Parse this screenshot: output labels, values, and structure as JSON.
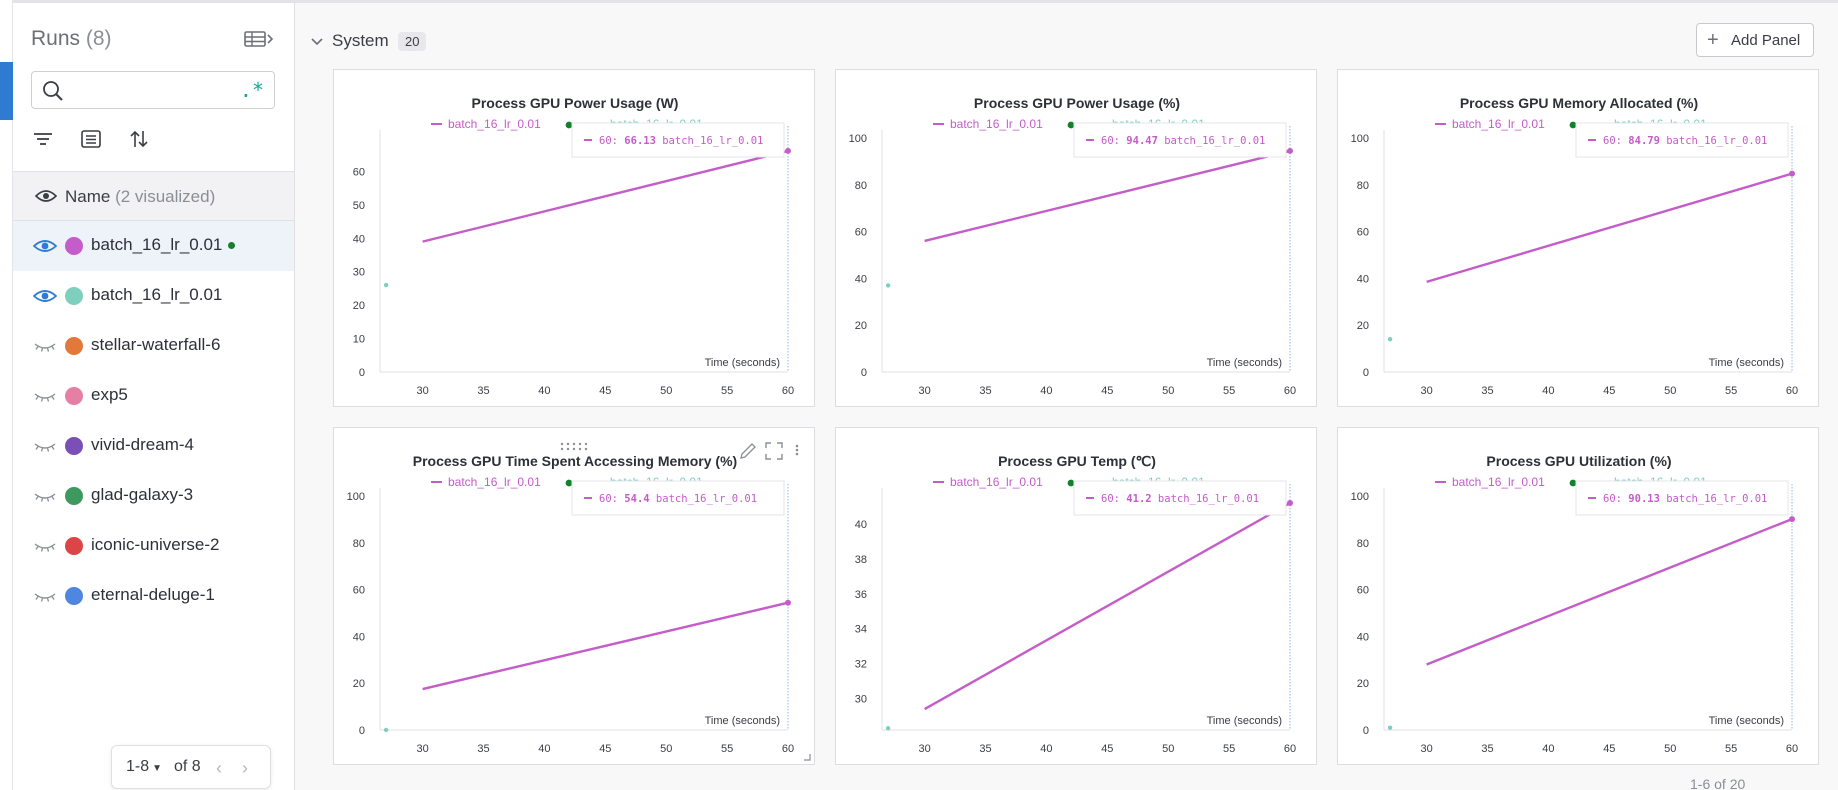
{
  "sidebar": {
    "title": "Runs",
    "count": "(8)",
    "search": {
      "value": "",
      "placeholder": "",
      "regex_label": ".*"
    },
    "name_header": {
      "label": "Name",
      "sub": "(2 visualized)"
    },
    "runs": [
      {
        "name": "batch_16_lr_0.01",
        "color": "#c45cc9",
        "visible": true,
        "selected": true,
        "live": true
      },
      {
        "name": "batch_16_lr_0.01",
        "color": "#7fcfbf",
        "visible": true,
        "selected": false,
        "live": false
      },
      {
        "name": "stellar-waterfall-6",
        "color": "#e2793a",
        "visible": false,
        "selected": false,
        "live": false
      },
      {
        "name": "exp5",
        "color": "#e57fa3",
        "visible": false,
        "selected": false,
        "live": false
      },
      {
        "name": "vivid-dream-4",
        "color": "#7a4fb6",
        "visible": false,
        "selected": false,
        "live": false
      },
      {
        "name": "glad-galaxy-3",
        "color": "#3c9a5f",
        "visible": false,
        "selected": false,
        "live": false
      },
      {
        "name": "iconic-universe-2",
        "color": "#dc4545",
        "visible": false,
        "selected": false,
        "live": false
      },
      {
        "name": "eternal-deluge-1",
        "color": "#4f86e0",
        "visible": false,
        "selected": false,
        "live": false
      }
    ],
    "pager": {
      "range": "1-8",
      "of": "of 8"
    }
  },
  "section": {
    "title": "System",
    "count": "20",
    "add_panel_label": "Add Panel"
  },
  "colors": {
    "series_a": "#c45cc9",
    "series_b": "#7fcfbf",
    "accent": "#2e7bd1",
    "live": "#13802e"
  },
  "bottom_pager": "1-6 of 20",
  "chart_data": [
    {
      "type": "line",
      "title": "Process GPU Power Usage (W)",
      "xlabel": "Time (seconds)",
      "xlim": [
        26.5,
        60
      ],
      "xticks": [
        30,
        35,
        40,
        45,
        50,
        55,
        60
      ],
      "ylim": [
        0,
        70
      ],
      "yticks": [
        0,
        10,
        20,
        30,
        40,
        50,
        60
      ],
      "series": [
        {
          "name": "batch_16_lr_0.01",
          "color": "#c45cc9",
          "x": [
            30,
            60
          ],
          "y": [
            39,
            66.13
          ]
        },
        {
          "name": "batch_16_lr_0.01",
          "color": "#7fcfbf",
          "x": [
            27
          ],
          "y": [
            26
          ]
        }
      ],
      "tooltip": {
        "x": "60:",
        "value": "66.13",
        "run": "batch_16_lr_0.01"
      }
    },
    {
      "type": "line",
      "title": "Process GPU Power Usage (%)",
      "xlabel": "Time (seconds)",
      "xlim": [
        26.5,
        60
      ],
      "xticks": [
        30,
        35,
        40,
        45,
        50,
        55,
        60
      ],
      "ylim": [
        0,
        100
      ],
      "yticks": [
        0,
        20,
        40,
        60,
        80,
        100
      ],
      "series": [
        {
          "name": "batch_16_lr_0.01",
          "color": "#c45cc9",
          "x": [
            30,
            60
          ],
          "y": [
            56,
            94.47
          ]
        },
        {
          "name": "batch_16_lr_0.01",
          "color": "#7fcfbf",
          "x": [
            27
          ],
          "y": [
            37
          ]
        }
      ],
      "tooltip": {
        "x": "60:",
        "value": "94.47",
        "run": "batch_16_lr_0.01"
      }
    },
    {
      "type": "line",
      "title": "Process GPU Memory Allocated (%)",
      "xlabel": "Time (seconds)",
      "xlim": [
        26.5,
        60
      ],
      "xticks": [
        30,
        35,
        40,
        45,
        50,
        55,
        60
      ],
      "ylim": [
        0,
        100
      ],
      "yticks": [
        0,
        20,
        40,
        60,
        80,
        100
      ],
      "series": [
        {
          "name": "batch_16_lr_0.01",
          "color": "#c45cc9",
          "x": [
            30,
            60
          ],
          "y": [
            38.5,
            84.79
          ]
        },
        {
          "name": "batch_16_lr_0.01",
          "color": "#7fcfbf",
          "x": [
            27
          ],
          "y": [
            14
          ]
        }
      ],
      "tooltip": {
        "x": "60:",
        "value": "84.79",
        "run": "batch_16_lr_0.01"
      }
    },
    {
      "type": "line",
      "title": "Process GPU Time Spent Accessing Memory (%)",
      "xlabel": "Time (seconds)",
      "xlim": [
        26.5,
        60
      ],
      "xticks": [
        30,
        35,
        40,
        45,
        50,
        55,
        60
      ],
      "ylim": [
        0,
        100
      ],
      "yticks": [
        0,
        20,
        40,
        60,
        80,
        100
      ],
      "series": [
        {
          "name": "batch_16_lr_0.01",
          "color": "#c45cc9",
          "x": [
            30,
            60
          ],
          "y": [
            17.5,
            54.4
          ]
        },
        {
          "name": "batch_16_lr_0.01",
          "color": "#7fcfbf",
          "x": [
            27
          ],
          "y": [
            0
          ]
        }
      ],
      "tooltip": {
        "x": "60:",
        "value": "54.4",
        "run": "batch_16_lr_0.01"
      }
    },
    {
      "type": "line",
      "title": "Process GPU Temp (℃)",
      "xlabel": "Time (seconds)",
      "xlim": [
        26.5,
        60
      ],
      "xticks": [
        30,
        35,
        40,
        45,
        50,
        55,
        60
      ],
      "ylim": [
        28.2,
        41.6
      ],
      "yticks": [
        30,
        32,
        34,
        36,
        38,
        40
      ],
      "series": [
        {
          "name": "batch_16_lr_0.01",
          "color": "#c45cc9",
          "x": [
            30,
            60
          ],
          "y": [
            29.4,
            41.2
          ]
        },
        {
          "name": "batch_16_lr_0.01",
          "color": "#7fcfbf",
          "x": [
            27
          ],
          "y": [
            28.3
          ]
        }
      ],
      "tooltip": {
        "x": "60:",
        "value": "41.2",
        "run": "batch_16_lr_0.01"
      }
    },
    {
      "type": "line",
      "title": "Process GPU Utilization (%)",
      "xlabel": "Time (seconds)",
      "xlim": [
        26.5,
        60
      ],
      "xticks": [
        30,
        35,
        40,
        45,
        50,
        55,
        60
      ],
      "ylim": [
        0,
        100
      ],
      "yticks": [
        0,
        20,
        40,
        60,
        80,
        100
      ],
      "series": [
        {
          "name": "batch_16_lr_0.01",
          "color": "#c45cc9",
          "x": [
            30,
            60
          ],
          "y": [
            28,
            90.13
          ]
        },
        {
          "name": "batch_16_lr_0.01",
          "color": "#7fcfbf",
          "x": [
            27
          ],
          "y": [
            1
          ]
        }
      ],
      "tooltip": {
        "x": "60:",
        "value": "90.13",
        "run": "batch_16_lr_0.01"
      }
    }
  ]
}
